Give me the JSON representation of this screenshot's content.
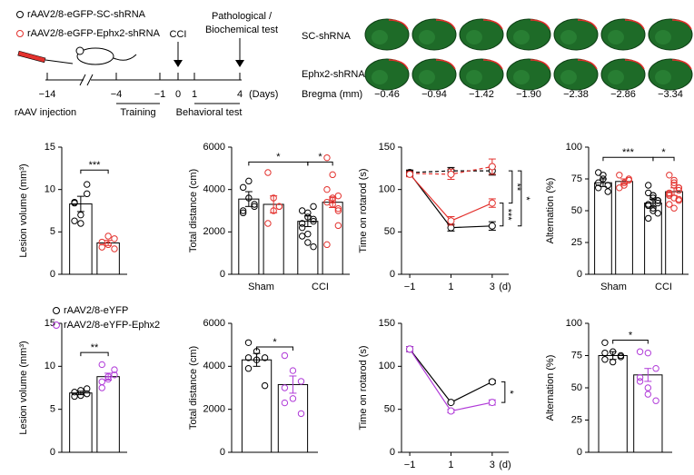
{
  "legend": [
    "rAAV2/8-eGFP-SC-shRNA",
    "rAAV2/8-eGFP-Ephx2-shRNA"
  ],
  "timeline": {
    "events": [
      "CCI",
      "Pathological /",
      "Biochemical test"
    ],
    "ticks": [
      "−14",
      "−4",
      "−1",
      "0",
      "1",
      "4"
    ],
    "unit": "(Days)",
    "phases": [
      "rAAV injection",
      "Training",
      "Behavioral test"
    ]
  },
  "brain": {
    "rows": [
      "SC-shRNA",
      "Ephx2-shRNA"
    ],
    "bregma_label": "Bregma (mm)",
    "bregma": [
      "−0.46",
      "−0.94",
      "−1.42",
      "−1.90",
      "−2.38",
      "−2.86",
      "−3.34"
    ]
  },
  "chart_data": [
    {
      "type": "bar",
      "ylabel": "Lesion volume (mm³)",
      "ylim": [
        0,
        15
      ],
      "yticks": [
        0,
        5,
        10,
        15
      ],
      "categories": [
        null
      ],
      "series": [
        {
          "color": "#000000",
          "values": [
            8.3
          ],
          "errors": [
            0.9
          ],
          "points": [
            [
              8.5,
              7.0,
              9.5,
              6.3,
              6.0,
              10.6,
              8.4
            ]
          ]
        },
        {
          "color": "#e3312d",
          "values": [
            3.7
          ],
          "errors": [
            0.3
          ],
          "points": [
            [
              3.2,
              3.5,
              4.2,
              3.8,
              4.5,
              3.0
            ]
          ]
        }
      ],
      "annotations": [
        "***"
      ]
    },
    {
      "type": "bar",
      "ylabel": "Total distance (cm)",
      "ylim": [
        0,
        6000
      ],
      "yticks": [
        0,
        2000,
        4000,
        6000
      ],
      "categories": [
        "Sham",
        "CCI"
      ],
      "series": [
        {
          "color": "#000000",
          "values": [
            3550,
            2500
          ],
          "errors": [
            350,
            250
          ],
          "points": [
            [
              4100,
              3600,
              3200,
              3000,
              4400,
              3300,
              2900
            ],
            [
              3000,
              2700,
              2500,
              2200,
              1900,
              1300,
              1800,
              2900,
              3200,
              2400,
              1500,
              2600
            ]
          ]
        },
        {
          "color": "#e3312d",
          "values": [
            3300,
            3400
          ],
          "errors": [
            400,
            250
          ],
          "points": [
            [
              4800,
              3600,
              3200,
              2400,
              3000,
              3200
            ],
            [
              5500,
              4700,
              3700,
              3400,
              3300,
              3000,
              4000,
              3500,
              2300,
              1400,
              3600,
              3100
            ]
          ]
        }
      ],
      "annotations": [
        "*",
        "*"
      ]
    },
    {
      "type": "line",
      "ylabel": "Time on rotarod (s)",
      "xlabel": "(d)",
      "x": [
        -1,
        1,
        3
      ],
      "xlim": [
        -1.4,
        3.8
      ],
      "xticks": [
        {
          "value": -1,
          "label": "−1"
        },
        1,
        3
      ],
      "ylim": [
        0,
        150
      ],
      "yticks": [
        0,
        50,
        100,
        150
      ],
      "series": [
        {
          "color": "#000000",
          "dashed": true,
          "values": [
            120,
            122,
            122
          ],
          "errors": [
            3,
            4,
            5
          ]
        },
        {
          "color": "#e3312d",
          "dashed": true,
          "values": [
            119,
            118,
            127
          ],
          "errors": [
            3,
            6,
            9
          ]
        },
        {
          "color": "#000000",
          "dashed": false,
          "values": [
            119,
            55,
            57
          ],
          "errors": [
            3,
            4,
            5
          ]
        },
        {
          "color": "#e3312d",
          "dashed": false,
          "values": [
            118,
            63,
            84
          ],
          "errors": [
            3,
            5,
            5
          ]
        }
      ],
      "annotations": [
        "**",
        "***",
        "*"
      ]
    },
    {
      "type": "bar",
      "ylabel": "Alternation (%)",
      "ylim": [
        0,
        100
      ],
      "yticks": [
        0,
        25,
        50,
        75,
        100
      ],
      "categories": [
        "Sham",
        "CCI"
      ],
      "series": [
        {
          "color": "#000000",
          "values": [
            72,
            56
          ],
          "errors": [
            3,
            3
          ],
          "points": [
            [
              80,
              75,
              70,
              68,
              78,
              65,
              72
            ],
            [
              70,
              62,
              58,
              55,
              52,
              48,
              44,
              60,
              56,
              64,
              50,
              58,
              54,
              62
            ]
          ]
        },
        {
          "color": "#e3312d",
          "values": [
            73,
            65
          ],
          "errors": [
            2,
            3
          ],
          "points": [
            [
              78,
              72,
              75,
              68,
              70,
              74
            ],
            [
              78,
              72,
              68,
              64,
              60,
              58,
              55,
              70,
              66,
              62,
              74,
              59,
              63,
              52,
              68
            ]
          ]
        }
      ],
      "annotations": [
        "***",
        "*"
      ]
    },
    {
      "type": "bar",
      "ylabel": "Lesion volume (mm³)",
      "ylim": [
        0,
        15
      ],
      "yticks": [
        0,
        5,
        10,
        15
      ],
      "categories": [
        null
      ],
      "series": [
        {
          "name": "rAAV2/8-eYFP",
          "color": "#000000",
          "values": [
            6.9
          ],
          "errors": [
            0.2
          ],
          "points": [
            [
              6.5,
              7.2,
              6.8,
              7.0,
              6.6,
              7.4
            ]
          ]
        },
        {
          "name": "rAAV2/8-eYFP-Ephx2",
          "color": "#b03ad8",
          "values": [
            8.8
          ],
          "errors": [
            0.4
          ],
          "points": [
            [
              10.2,
              8.5,
              9.0,
              7.5,
              8.8,
              9.6,
              8.2
            ]
          ]
        }
      ],
      "annotations": [
        "**"
      ]
    },
    {
      "type": "bar",
      "ylabel": "Total distance (cm)",
      "ylim": [
        0,
        6000
      ],
      "yticks": [
        0,
        2000,
        4000,
        6000
      ],
      "categories": [
        null
      ],
      "series": [
        {
          "color": "#000000",
          "values": [
            4300
          ],
          "errors": [
            300
          ],
          "points": [
            [
              5100,
              4700,
              4400,
              3900,
              4300,
              3100,
              4400
            ]
          ]
        },
        {
          "color": "#b03ad8",
          "values": [
            3150
          ],
          "errors": [
            400
          ],
          "points": [
            [
              4500,
              3800,
              3300,
              3000,
              2500,
              1800,
              2300
            ]
          ]
        }
      ],
      "annotations": [
        "*"
      ]
    },
    {
      "type": "line",
      "ylabel": "Time on rotarod (s)",
      "xlabel": "(d)",
      "x": [
        -1,
        1,
        3
      ],
      "xlim": [
        -1.4,
        3.8
      ],
      "xticks": [
        {
          "value": -1,
          "label": "−1"
        },
        1,
        3
      ],
      "ylim": [
        0,
        150
      ],
      "yticks": [
        0,
        50,
        100,
        150
      ],
      "series": [
        {
          "color": "#000000",
          "dashed": false,
          "values": [
            120,
            58,
            82
          ],
          "errors": [
            3,
            1,
            2
          ]
        },
        {
          "color": "#b03ad8",
          "dashed": false,
          "values": [
            120,
            48,
            58
          ],
          "errors": [
            3,
            2,
            3
          ]
        }
      ],
      "annotations": [
        "*"
      ]
    },
    {
      "type": "bar",
      "ylabel": "Alternation (%)",
      "ylim": [
        0,
        100
      ],
      "yticks": [
        0,
        25,
        50,
        75,
        100
      ],
      "categories": [
        null
      ],
      "series": [
        {
          "color": "#000000",
          "values": [
            75
          ],
          "errors": [
            3
          ],
          "points": [
            [
              85,
              78,
              75,
              72,
              70,
              74,
              77
            ]
          ]
        },
        {
          "color": "#b03ad8",
          "values": [
            60
          ],
          "errors": [
            5
          ],
          "points": [
            [
              78,
              77,
              65,
              55,
              50,
              40,
              58,
              45
            ]
          ]
        }
      ],
      "annotations": [
        "*"
      ]
    }
  ]
}
